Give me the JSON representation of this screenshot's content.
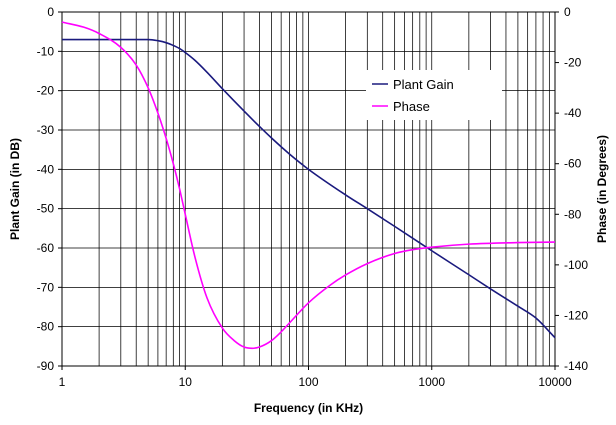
{
  "chart_data": {
    "type": "line",
    "xscale": "log",
    "xlim": [
      1,
      10000
    ],
    "xlabel": "Frequency (in KHz)",
    "ylabel_left": "Plant Gain (in DB)",
    "ylim_left": [
      -90,
      0
    ],
    "ylabel_right": "Phase (in Degrees)",
    "ylim_right": [
      -140,
      0
    ],
    "x_tick_labels": [
      "1",
      "10",
      "100",
      "1000",
      "10000"
    ],
    "y_left_tick_labels": [
      "0",
      "-10",
      "-20",
      "-30",
      "-40",
      "-50",
      "-60",
      "-70",
      "-80",
      "-90"
    ],
    "y_right_tick_labels": [
      "0",
      "-20",
      "-40",
      "-60",
      "-80",
      "-100",
      "-120",
      "-140"
    ],
    "grid": true,
    "legend": {
      "position": "upper-right-inside",
      "entries": [
        "Plant Gain",
        "Phase"
      ]
    },
    "series": [
      {
        "name": "Plant Gain",
        "axis": "left",
        "color": "#1a1a7e",
        "x": [
          1,
          2,
          3,
          5,
          6,
          7,
          8,
          9,
          10,
          12,
          15,
          20,
          30,
          40,
          50,
          70,
          100,
          200,
          300,
          500,
          700,
          1000,
          2000,
          3000,
          5000,
          7000,
          10000
        ],
        "y": [
          -7,
          -7,
          -7,
          -7,
          -7.3,
          -7.8,
          -8.5,
          -9.3,
          -10.3,
          -12.3,
          -15.3,
          -19.5,
          -25.2,
          -29.1,
          -32,
          -36.1,
          -40,
          -46.5,
          -50,
          -54.5,
          -57.5,
          -60.7,
          -66.8,
          -70.4,
          -74.8,
          -77.8,
          -82.8
        ]
      },
      {
        "name": "Phase",
        "axis": "right",
        "color": "#ff00ff",
        "x": [
          1,
          1.5,
          2,
          3,
          4,
          5,
          6,
          7,
          8,
          9,
          10,
          12,
          15,
          20,
          25,
          30,
          35,
          40,
          50,
          60,
          70,
          100,
          150,
          200,
          300,
          500,
          700,
          1000,
          2000,
          5000,
          10000
        ],
        "y": [
          -4,
          -6,
          -8.5,
          -14,
          -21,
          -30,
          -40,
          -50,
          -60,
          -70,
          -80,
          -97,
          -113,
          -125,
          -130,
          -132.5,
          -133,
          -132.5,
          -130,
          -126.5,
          -123,
          -115,
          -108,
          -104,
          -99.5,
          -95.5,
          -94,
          -93,
          -91.8,
          -91.2,
          -91
        ]
      }
    ]
  }
}
